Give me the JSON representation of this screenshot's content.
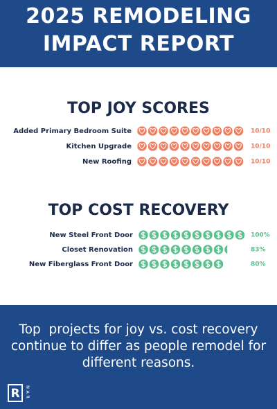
{
  "header": {
    "title": "2025 REMODELING IMPACT REPORT"
  },
  "chart_data": [
    {
      "type": "pictograph",
      "title": "TOP JOY SCORES",
      "icon": "heart",
      "categories": [
        "Added Primary Bedroom Suite",
        "Kitchen Upgrade",
        "New Roofing"
      ],
      "values": [
        10,
        10,
        10
      ],
      "value_labels": [
        "10/10",
        "10/10",
        "10/10"
      ],
      "xlim": [
        0,
        10
      ],
      "color": "#ef7d5f"
    },
    {
      "type": "pictograph",
      "title": "TOP COST RECOVERY",
      "icon": "dollar",
      "categories": [
        "New Steel Front Door",
        "Closet Renovation",
        "New Fiberglass Front Door"
      ],
      "values": [
        100,
        83,
        80
      ],
      "value_labels": [
        "100%",
        "83%",
        "80%"
      ],
      "xlim": [
        0,
        100
      ],
      "color": "#5cbf8e"
    }
  ],
  "footer": {
    "text": "Top  projects for joy vs. cost recovery continue to differ as people remodel for different reasons.",
    "logo_mark": "R",
    "logo_text": "NAR"
  }
}
